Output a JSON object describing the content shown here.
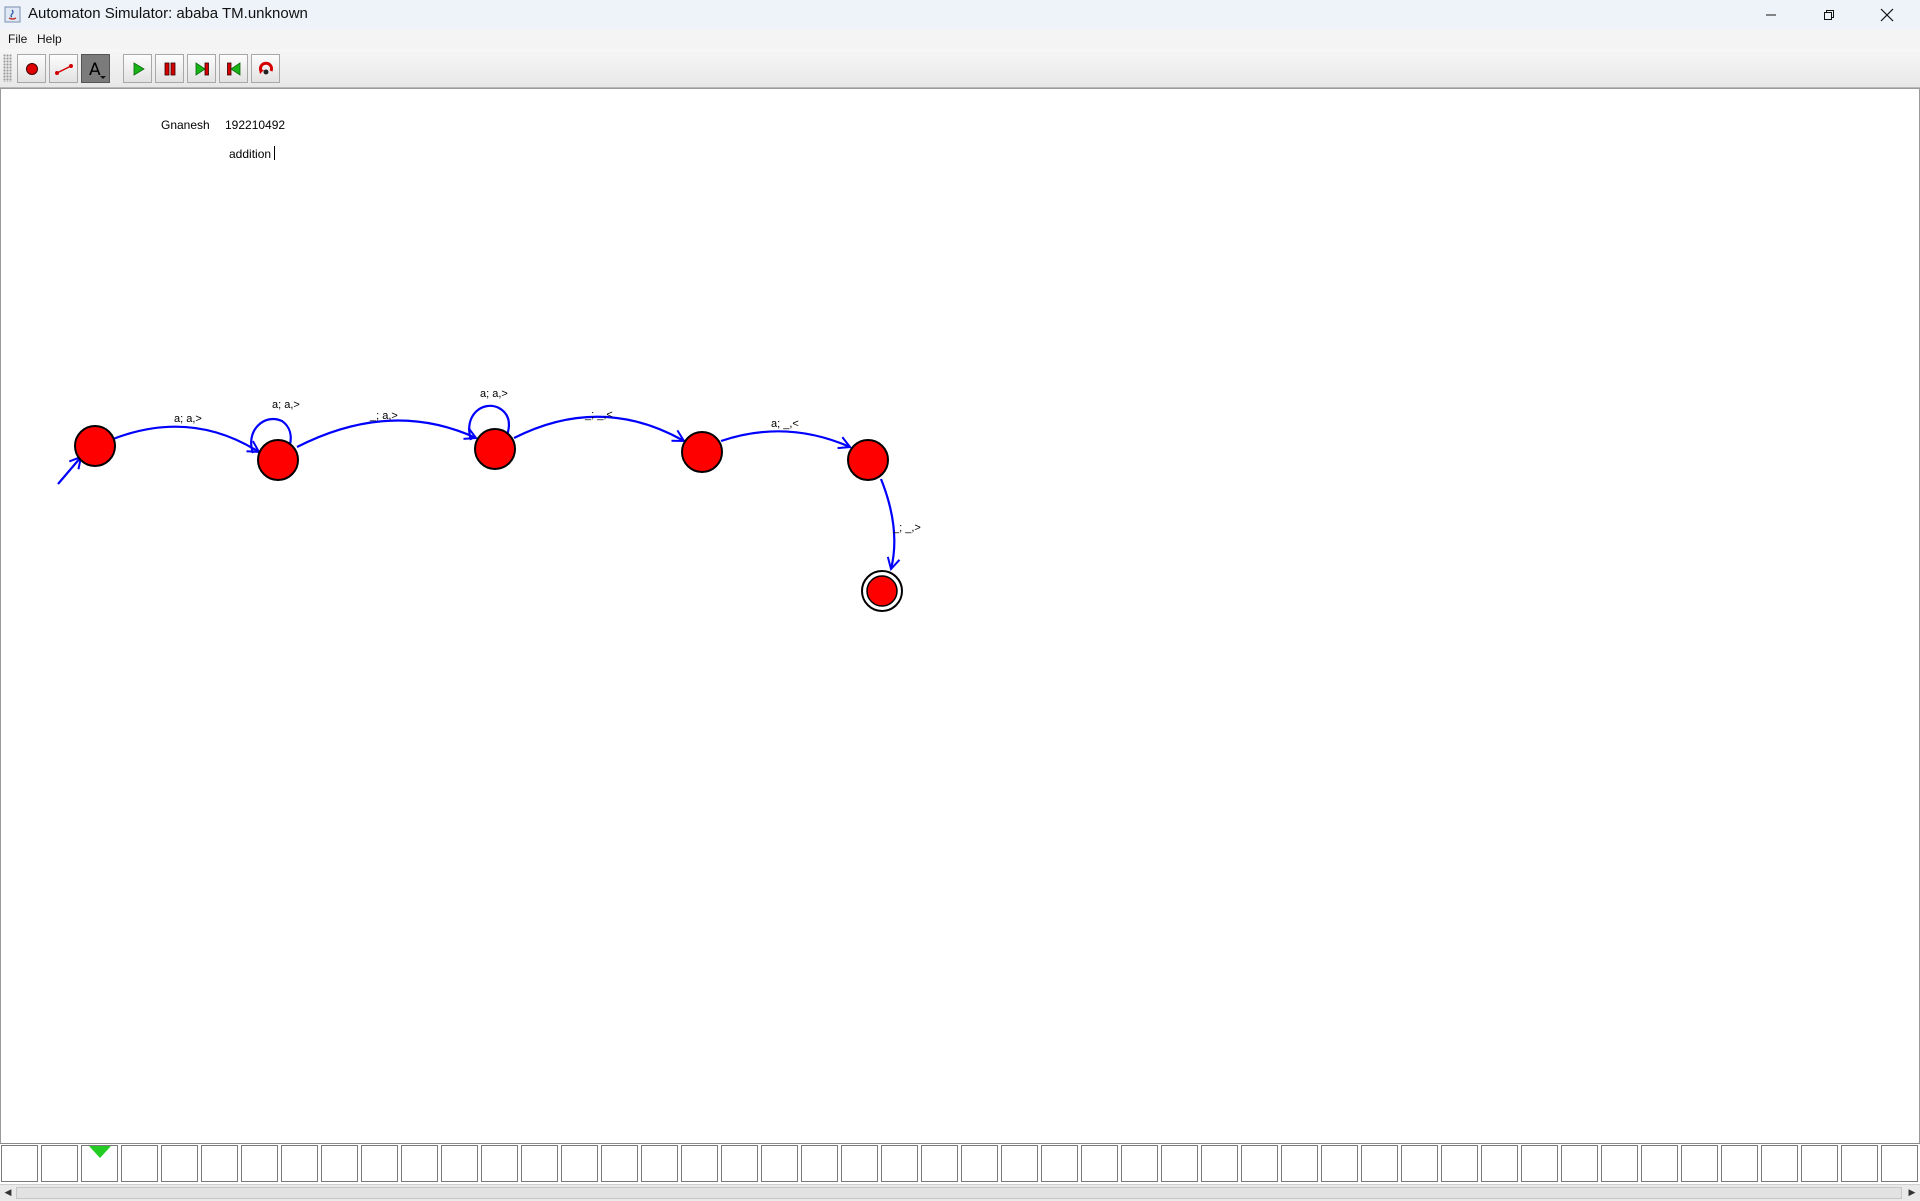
{
  "window": {
    "title": "Automaton Simulator: ababa TM.unknown",
    "controls": [
      "minimize-icon",
      "restore-icon",
      "close-icon"
    ]
  },
  "menu": {
    "items": [
      "File",
      "Help"
    ]
  },
  "toolbar": {
    "buttons": [
      {
        "name": "add-state",
        "icon": "state-circle-icon"
      },
      {
        "name": "add-transition",
        "icon": "transition-line-icon"
      },
      {
        "name": "text-tool",
        "icon": "text-tool-icon",
        "active": true
      },
      {
        "name": "run",
        "icon": "play-icon"
      },
      {
        "name": "pause",
        "icon": "pause-icon"
      },
      {
        "name": "step",
        "icon": "step-forward-icon"
      },
      {
        "name": "step-back",
        "icon": "step-back-icon"
      },
      {
        "name": "reset",
        "icon": "reset-icon"
      }
    ]
  },
  "canvas": {
    "notes": {
      "author": "Gnanesh",
      "id": "192210492",
      "description": "addition"
    },
    "states": [
      {
        "id": "q0",
        "start": true,
        "final": false
      },
      {
        "id": "q1",
        "start": false,
        "final": false
      },
      {
        "id": "q2",
        "start": false,
        "final": false
      },
      {
        "id": "q3",
        "start": false,
        "final": false
      },
      {
        "id": "q4",
        "start": false,
        "final": false
      },
      {
        "id": "q5",
        "start": false,
        "final": true
      }
    ],
    "transitions": [
      {
        "from": "q0",
        "to": "q1",
        "label": "a; a,>"
      },
      {
        "from": "q1",
        "to": "q1",
        "label": "a; a,>"
      },
      {
        "from": "q1",
        "to": "q2",
        "label": "_; a,>"
      },
      {
        "from": "q2",
        "to": "q2",
        "label": "a; a,>"
      },
      {
        "from": "q2",
        "to": "q3",
        "label": "_; _,<"
      },
      {
        "from": "q3",
        "to": "q4",
        "label": "a; _,<"
      },
      {
        "from": "q4",
        "to": "q5",
        "label": "_; _,>"
      }
    ],
    "colors": {
      "state_fill": "#ff0000",
      "transition": "#0000ff"
    }
  },
  "tape": {
    "head_position": 2,
    "head_color": "#22cc22",
    "cells": [
      "",
      "",
      "",
      "",
      "",
      "",
      "",
      "",
      "",
      "",
      "",
      "",
      "",
      "",
      "",
      "",
      "",
      "",
      "",
      "",
      "",
      "",
      "",
      "",
      "",
      "",
      "",
      "",
      "",
      "",
      "",
      "",
      "",
      "",
      "",
      "",
      "",
      "",
      "",
      "",
      "",
      "",
      "",
      "",
      "",
      "",
      "",
      "",
      ""
    ]
  }
}
